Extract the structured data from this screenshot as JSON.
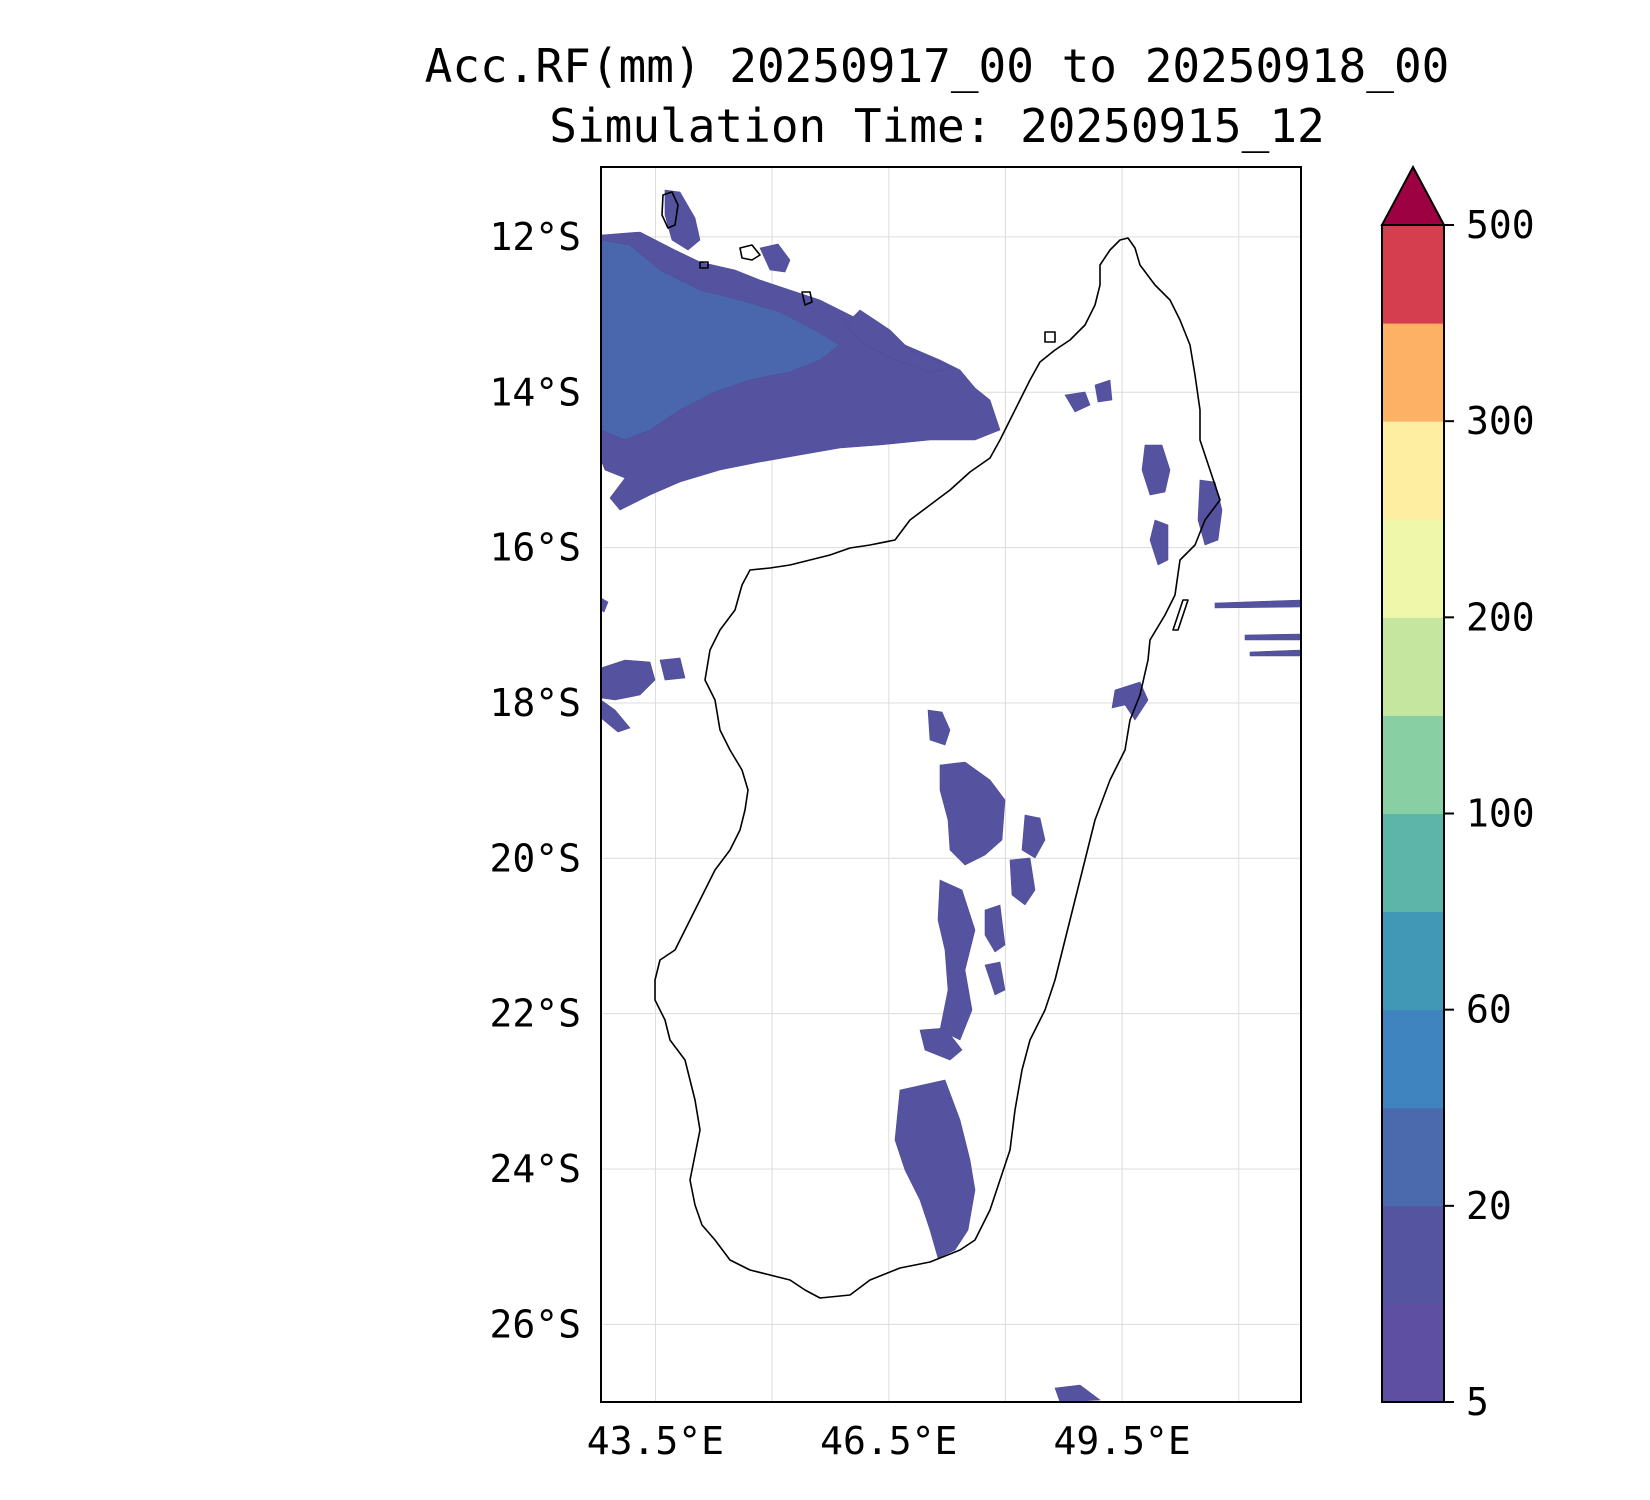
{
  "title": {
    "line1": "Acc.RF(mm) 20250917_00 to 20250918_00",
    "line2": "Simulation Time: 20250915_12"
  },
  "map": {
    "lon_range": [
      42.8,
      51.8
    ],
    "lat_range": [
      -27.0,
      -11.1
    ],
    "lon_ticks": [
      {
        "value": 43.5,
        "label": "43.5°E"
      },
      {
        "value": 46.5,
        "label": "46.5°E"
      },
      {
        "value": 49.5,
        "label": "49.5°E"
      }
    ],
    "lon_grid": [
      43.5,
      45.0,
      46.5,
      48.0,
      49.5,
      51.0
    ],
    "lat_ticks": [
      {
        "value": -12,
        "label": "12°S"
      },
      {
        "value": -14,
        "label": "14°S"
      },
      {
        "value": -16,
        "label": "16°S"
      },
      {
        "value": -18,
        "label": "18°S"
      },
      {
        "value": -20,
        "label": "20°S"
      },
      {
        "value": -22,
        "label": "22°S"
      },
      {
        "value": -24,
        "label": "24°S"
      },
      {
        "value": -26,
        "label": "26°S"
      }
    ],
    "grid": true,
    "coast_color": "#000000",
    "rain_color_light": "#5553a0",
    "rain_color_medium": "#4a66ac"
  },
  "colorbar": {
    "extend": "max",
    "extend_color": "#9e0142",
    "boundaries": [
      5,
      10,
      20,
      40,
      60,
      80,
      100,
      150,
      200,
      250,
      300,
      350,
      500
    ],
    "colors": [
      "#5e4fa2",
      "#5454a1",
      "#4b69ad",
      "#3f83bf",
      "#4098b6",
      "#5cb5a8",
      "#88d0a4",
      "#c4e69e",
      "#eff8aa",
      "#fdeea1",
      "#fdb165",
      "#d53e4f"
    ],
    "ticks": [
      {
        "value": 5,
        "label": "5"
      },
      {
        "value": 20,
        "label": "20"
      },
      {
        "value": 60,
        "label": "60"
      },
      {
        "value": 100,
        "label": "100"
      },
      {
        "value": 200,
        "label": "200"
      },
      {
        "value": 300,
        "label": "300"
      },
      {
        "value": 500,
        "label": "500"
      }
    ]
  }
}
